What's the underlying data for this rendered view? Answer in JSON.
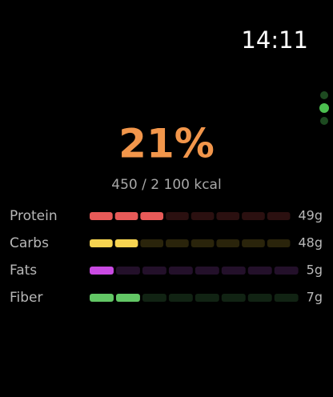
{
  "time": "14:11",
  "progress": {
    "percent_label": "21%",
    "kcal_label": "450 / 2 100 kcal"
  },
  "nutrients": [
    {
      "label": "Protein",
      "value_label": "49g",
      "filled": 3,
      "segments": 8,
      "color": "#e85a58",
      "dim_color": "#2b1010"
    },
    {
      "label": "Carbs",
      "value_label": "48g",
      "filled": 2,
      "segments": 8,
      "color": "#f7d451",
      "dim_color": "#2a240b"
    },
    {
      "label": "Fats",
      "value_label": "5g",
      "filled": 1,
      "segments": 8,
      "color": "#c94ae2",
      "dim_color": "#23102a"
    },
    {
      "label": "Fiber",
      "value_label": "7g",
      "filled": 2,
      "segments": 8,
      "color": "#62c765",
      "dim_color": "#112313"
    }
  ]
}
